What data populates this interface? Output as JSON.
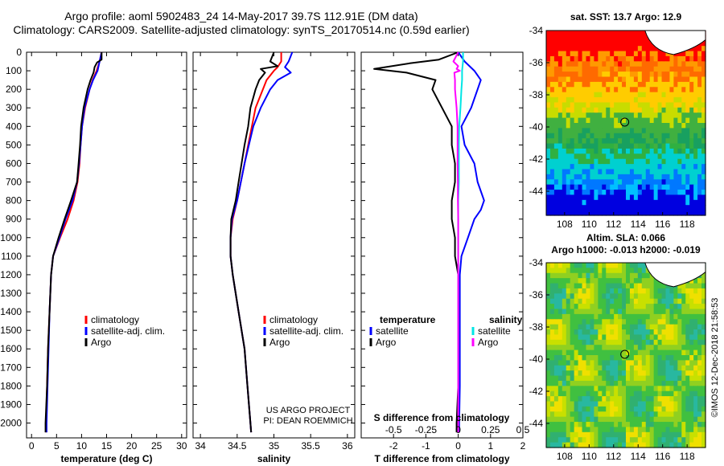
{
  "title": {
    "line1": "Argo profile: aoml 5902483_24 14-May-2017 39.7S 112.91E (DM data)",
    "line2": "Climatology: CARS2009. Satellite-adjusted climatology: synTS_20170514.nc (0.59d earlier)"
  },
  "colors": {
    "climatology": "#ff0000",
    "satellite": "#0000ff",
    "argo": "#000000",
    "sat_salinity": "#00e5e5",
    "argo_salinity": "#ff00ff"
  },
  "credit": {
    "line1": "US ARGO PROJECT",
    "line2": "PI: DEAN ROEMMICH"
  },
  "watermark": "©IMOS 12-Dec-2018 21:58:53",
  "chart_data": [
    {
      "id": "temperature",
      "type": "line",
      "xlabel": "temperature (deg C)",
      "ylabel": "",
      "xlim": [
        -1,
        31
      ],
      "ylim": [
        2080,
        0
      ],
      "xticks": [
        0,
        5,
        10,
        15,
        20,
        25,
        30
      ],
      "yticks": [
        0,
        100,
        200,
        300,
        400,
        500,
        600,
        700,
        800,
        900,
        1000,
        1100,
        1200,
        1300,
        1400,
        1500,
        1600,
        1700,
        1800,
        1900,
        2000
      ],
      "legend": [
        "climatology",
        "satellite-adj. clim.",
        "Argo"
      ],
      "series": [
        {
          "name": "climatology",
          "color": "#ff0000",
          "depth": [
            0,
            50,
            100,
            150,
            200,
            300,
            400,
            500,
            600,
            700,
            800,
            900,
            1000,
            1100,
            1200,
            1400,
            1600,
            1800,
            2000,
            2050
          ],
          "values": [
            14.0,
            13.6,
            13.0,
            12.2,
            11.6,
            10.7,
            10.1,
            9.8,
            9.6,
            9.2,
            8.4,
            7.2,
            5.7,
            4.3,
            3.9,
            3.6,
            3.3,
            3.1,
            2.9,
            2.9
          ]
        },
        {
          "name": "satellite-adj. clim.",
          "color": "#0000ff",
          "depth": [
            0,
            50,
            100,
            150,
            200,
            300,
            400,
            500,
            600,
            700,
            800,
            900,
            1000,
            1100,
            1200,
            1400,
            1600,
            1800,
            2000,
            2050
          ],
          "values": [
            14.0,
            13.6,
            13.2,
            12.3,
            11.6,
            10.6,
            10.1,
            9.8,
            9.5,
            9.1,
            8.2,
            6.8,
            5.6,
            4.3,
            3.9,
            3.6,
            3.4,
            3.2,
            3.0,
            3.0
          ]
        },
        {
          "name": "Argo",
          "color": "#000000",
          "depth": [
            0,
            40,
            55,
            80,
            110,
            150,
            200,
            300,
            400,
            500,
            600,
            700,
            800,
            900,
            1000,
            1100,
            1200,
            1400,
            1600,
            1800,
            2000,
            2050
          ],
          "values": [
            14.0,
            14.0,
            13.1,
            12.6,
            12.4,
            11.8,
            11.2,
            10.4,
            9.9,
            9.7,
            9.4,
            9.1,
            7.9,
            6.6,
            5.4,
            4.3,
            3.9,
            3.6,
            3.3,
            3.1,
            2.8,
            2.8
          ]
        }
      ]
    },
    {
      "id": "salinity",
      "type": "line",
      "xlabel": "salinity",
      "ylabel": "",
      "xlim": [
        33.9,
        36.1
      ],
      "ylim": [
        2080,
        0
      ],
      "xticks": [
        34,
        34.5,
        35,
        35.5,
        36
      ],
      "legend": [
        "climatology",
        "satellite-adj. clim.",
        "Argo"
      ],
      "series": [
        {
          "name": "climatology",
          "color": "#ff0000",
          "depth": [
            0,
            50,
            80,
            100,
            150,
            200,
            300,
            400,
            500,
            600,
            700,
            800,
            900,
            1000,
            1100,
            1200,
            1400,
            1600,
            1800,
            2000,
            2050
          ],
          "values": [
            35.1,
            35.1,
            35.05,
            35.0,
            34.9,
            34.85,
            34.75,
            34.7,
            34.65,
            34.6,
            34.55,
            34.5,
            34.44,
            34.41,
            34.41,
            34.44,
            34.52,
            34.6,
            34.64,
            34.68,
            34.69
          ]
        },
        {
          "name": "satellite-adj. clim.",
          "color": "#0000ff",
          "depth": [
            0,
            50,
            80,
            110,
            150,
            200,
            300,
            400,
            500,
            600,
            700,
            800,
            900,
            1000,
            1100,
            1200,
            1400,
            1600,
            1800,
            2000,
            2050
          ],
          "values": [
            35.25,
            35.2,
            35.15,
            35.23,
            35.05,
            34.95,
            34.82,
            34.72,
            34.66,
            34.6,
            34.55,
            34.5,
            34.43,
            34.41,
            34.41,
            34.44,
            34.52,
            34.6,
            34.64,
            34.68,
            34.69
          ]
        },
        {
          "name": "Argo",
          "color": "#000000",
          "depth": [
            0,
            50,
            75,
            90,
            110,
            150,
            200,
            300,
            400,
            500,
            600,
            700,
            800,
            900,
            1000,
            1100,
            1200,
            1400,
            1600,
            1800,
            2000,
            2050
          ],
          "values": [
            35.0,
            34.95,
            35.05,
            34.82,
            34.88,
            34.8,
            34.75,
            34.68,
            34.65,
            34.6,
            34.56,
            34.52,
            34.48,
            34.42,
            34.41,
            34.41,
            34.44,
            34.52,
            34.6,
            34.64,
            34.68,
            34.69
          ]
        }
      ]
    },
    {
      "id": "difference",
      "type": "line",
      "xlabel": "T difference from climatology",
      "top_label": "S difference from climatology",
      "xlim": [
        -3,
        2
      ],
      "ylim": [
        2080,
        0
      ],
      "xticks": [
        -2,
        -1,
        0,
        1,
        2
      ],
      "top_ticks": [
        {
          "label": "-0.5",
          "value": -0.5
        },
        {
          "label": "-0.25",
          "value": -0.25
        },
        {
          "label": "0",
          "value": 0
        },
        {
          "label": "0.25",
          "value": 0.25
        },
        {
          "label": "0.5",
          "value": 0.5
        }
      ],
      "legend_titles": [
        "temperature",
        "salinity"
      ],
      "legend": [
        "satellite",
        "Argo",
        "satellite",
        "Argo"
      ],
      "series": [
        {
          "name": "temperature satellite",
          "color": "#0000ff",
          "depth": [
            0,
            50,
            100,
            150,
            200,
            300,
            400,
            500,
            600,
            700,
            800,
            850,
            900,
            1000,
            1100,
            1200,
            1400,
            1600,
            1800,
            2000,
            2050
          ],
          "values": [
            0.0,
            0.2,
            0.5,
            0.7,
            0.6,
            0.4,
            0.1,
            0.2,
            0.5,
            0.6,
            0.8,
            0.7,
            0.5,
            0.3,
            0.1,
            0.05,
            0.05,
            0.05,
            0.05,
            0.03,
            0.03
          ]
        },
        {
          "name": "temperature Argo",
          "color": "#000000",
          "depth": [
            0,
            40,
            60,
            90,
            110,
            150,
            200,
            300,
            400,
            500,
            600,
            700,
            800,
            900,
            1000,
            1100,
            1200,
            1400,
            1600,
            1800,
            2000,
            2050
          ],
          "values": [
            0.0,
            -0.6,
            -1.5,
            -2.6,
            -1.6,
            -0.7,
            -0.8,
            -0.5,
            -0.2,
            -0.2,
            -0.1,
            -0.1,
            -0.2,
            -0.2,
            -0.1,
            -0.1,
            0.0,
            0.0,
            0.0,
            0.0,
            -0.05,
            -0.05
          ]
        },
        {
          "name": "salinity satellite",
          "color": "#00e5e5",
          "depth": [
            0,
            50,
            100,
            150,
            200,
            300,
            400,
            500,
            600,
            700,
            800,
            900,
            1000,
            1100,
            1200,
            1400,
            1600,
            1800,
            2000,
            2050
          ],
          "values": [
            0.15,
            0.15,
            0.12,
            0.12,
            0.1,
            0.07,
            0.03,
            0.02,
            0.02,
            0.02,
            0.0,
            0.0,
            0.0,
            0.0,
            0.0,
            0.0,
            0.0,
            0.0,
            0.0,
            0.0
          ]
        },
        {
          "name": "salinity Argo",
          "color": "#ff00ff",
          "depth": [
            0,
            50,
            75,
            90,
            100,
            110,
            150,
            200,
            300,
            400,
            500,
            600,
            700,
            800,
            900,
            1000,
            1100,
            1200,
            1400,
            1600,
            1800,
            2000,
            2050
          ],
          "values": [
            0.0,
            -0.15,
            0.0,
            -0.05,
            0.05,
            -0.12,
            -0.1,
            -0.1,
            -0.05,
            -0.02,
            -0.02,
            -0.02,
            -0.01,
            -0.01,
            0.0,
            0.0,
            0.0,
            0.0,
            0.0,
            0.0,
            0.0,
            0.0,
            0.0
          ]
        }
      ]
    },
    {
      "id": "sst-map",
      "type": "heatmap",
      "title": "sat. SST: 13.7 Argo: 12.9",
      "xlim": [
        106.5,
        119.5
      ],
      "ylim": [
        -45.5,
        -34
      ],
      "xticks": [
        108,
        110,
        112,
        114,
        116,
        118
      ],
      "yticks": [
        -34,
        -36,
        -38,
        -40,
        -42,
        -44
      ],
      "profile_location": {
        "lon": 112.91,
        "lat": -39.7
      }
    },
    {
      "id": "sla-map",
      "type": "heatmap",
      "title1": "Altim. SLA: 0.066",
      "title2": "Argo h1000: -0.013 h2000: -0.019",
      "xlim": [
        106.5,
        119.5
      ],
      "ylim": [
        -45.5,
        -34
      ],
      "xticks": [
        108,
        110,
        112,
        114,
        116,
        118
      ],
      "yticks": [
        -34,
        -36,
        -38,
        -40,
        -42,
        -44
      ],
      "profile_location": {
        "lon": 112.91,
        "lat": -39.7
      }
    }
  ]
}
